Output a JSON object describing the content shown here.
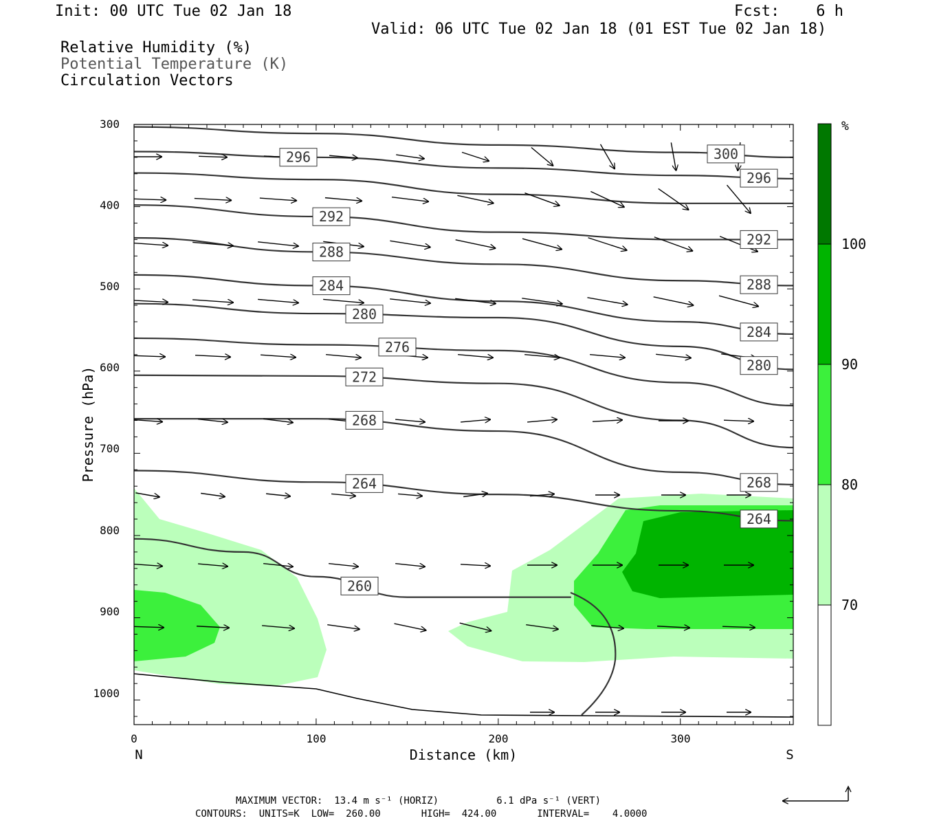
{
  "header": {
    "init": "Init: 00 UTC Tue 02 Jan 18",
    "fcst": "Fcst:    6 h",
    "valid": "Valid: 06 UTC Tue 02 Jan 18 (01 EST Tue 02 Jan 18)",
    "field1": "Relative Humidity (%)",
    "field2": "Potential Temperature (K)",
    "field3": "Circulation Vectors"
  },
  "footer": {
    "line1": "MAXIMUM VECTOR:  13.4 m s⁻¹ (HORIZ)          6.1 dPa s⁻¹ (VERT)",
    "line2": "CONTOURS:  UNITS=K  LOW=  260.00       HIGH=  424.00       INTERVAL=    4.0000"
  },
  "colors": {
    "rh70": "#bbffbb",
    "rh80": "#3cf03c",
    "rh90": "#00b400",
    "rh100": "#007800",
    "contour": "#333333"
  },
  "chart_data": {
    "type": "contour",
    "xlabel": "Distance (km)",
    "ylabel": "Pressure (hPa)",
    "xlim": [
      0,
      362
    ],
    "ylim": [
      1030,
      300
    ],
    "x_ticks": [
      "0",
      "100",
      "200",
      "300"
    ],
    "y_ticks": [
      "300",
      "400",
      "500",
      "600",
      "700",
      "800",
      "900",
      "1000"
    ],
    "x_end_labels": {
      "left": "N",
      "right": "S"
    },
    "colorbar": {
      "unit": "%",
      "labels": [
        "70",
        "80",
        "90",
        "100"
      ]
    },
    "theta_contours": [
      {
        "label": "300",
        "points": [
          [
            0,
            303
          ],
          [
            100,
            311
          ],
          [
            200,
            325
          ],
          [
            300,
            334
          ],
          [
            362,
            340
          ]
        ]
      },
      {
        "label": "296",
        "points": [
          [
            0,
            333
          ],
          [
            100,
            340
          ],
          [
            200,
            353
          ],
          [
            300,
            362
          ],
          [
            362,
            366
          ]
        ]
      },
      {
        "label": "",
        "points": [
          [
            0,
            359
          ],
          [
            100,
            367
          ],
          [
            200,
            385
          ],
          [
            300,
            396
          ],
          [
            362,
            396
          ]
        ]
      },
      {
        "label": "292",
        "points": [
          [
            0,
            398
          ],
          [
            100,
            412
          ],
          [
            200,
            431
          ],
          [
            300,
            440
          ],
          [
            362,
            440
          ]
        ]
      },
      {
        "label": "288",
        "points": [
          [
            0,
            438
          ],
          [
            100,
            455
          ],
          [
            200,
            470
          ],
          [
            300,
            490
          ],
          [
            362,
            496
          ]
        ]
      },
      {
        "label": "284",
        "points": [
          [
            0,
            483
          ],
          [
            100,
            496
          ],
          [
            200,
            515
          ],
          [
            300,
            540
          ],
          [
            362,
            555
          ]
        ]
      },
      {
        "label": "280",
        "points": [
          [
            0,
            518
          ],
          [
            100,
            530
          ],
          [
            200,
            535
          ],
          [
            300,
            570
          ],
          [
            362,
            598
          ]
        ]
      },
      {
        "label": "276",
        "points": [
          [
            0,
            560
          ],
          [
            100,
            568
          ],
          [
            200,
            575
          ],
          [
            300,
            614
          ],
          [
            362,
            642
          ]
        ]
      },
      {
        "label": "272",
        "points": [
          [
            0,
            605
          ],
          [
            100,
            606
          ],
          [
            200,
            615
          ],
          [
            300,
            660
          ],
          [
            362,
            693
          ]
        ]
      },
      {
        "label": "268",
        "points": [
          [
            0,
            658
          ],
          [
            100,
            658
          ],
          [
            200,
            673
          ],
          [
            300,
            723
          ],
          [
            362,
            738
          ]
        ]
      },
      {
        "label": "264",
        "points": [
          [
            0,
            721
          ],
          [
            100,
            735
          ],
          [
            200,
            750
          ],
          [
            300,
            770
          ],
          [
            362,
            782
          ]
        ]
      },
      {
        "label": "260",
        "points": [
          [
            0,
            804
          ],
          [
            60,
            820
          ],
          [
            100,
            850
          ],
          [
            150,
            875
          ],
          [
            200,
            875
          ],
          [
            240,
            875
          ]
        ]
      }
    ],
    "rh_levels": [
      70,
      80,
      90,
      100
    ],
    "max_vector": {
      "horiz": 13.4,
      "horiz_units": "m s-1",
      "vert": 6.1,
      "vert_units": "dPa s-1"
    },
    "contour_interval": 4.0,
    "contour_low": 260.0,
    "contour_high": 424.0,
    "contour_units": "K"
  }
}
